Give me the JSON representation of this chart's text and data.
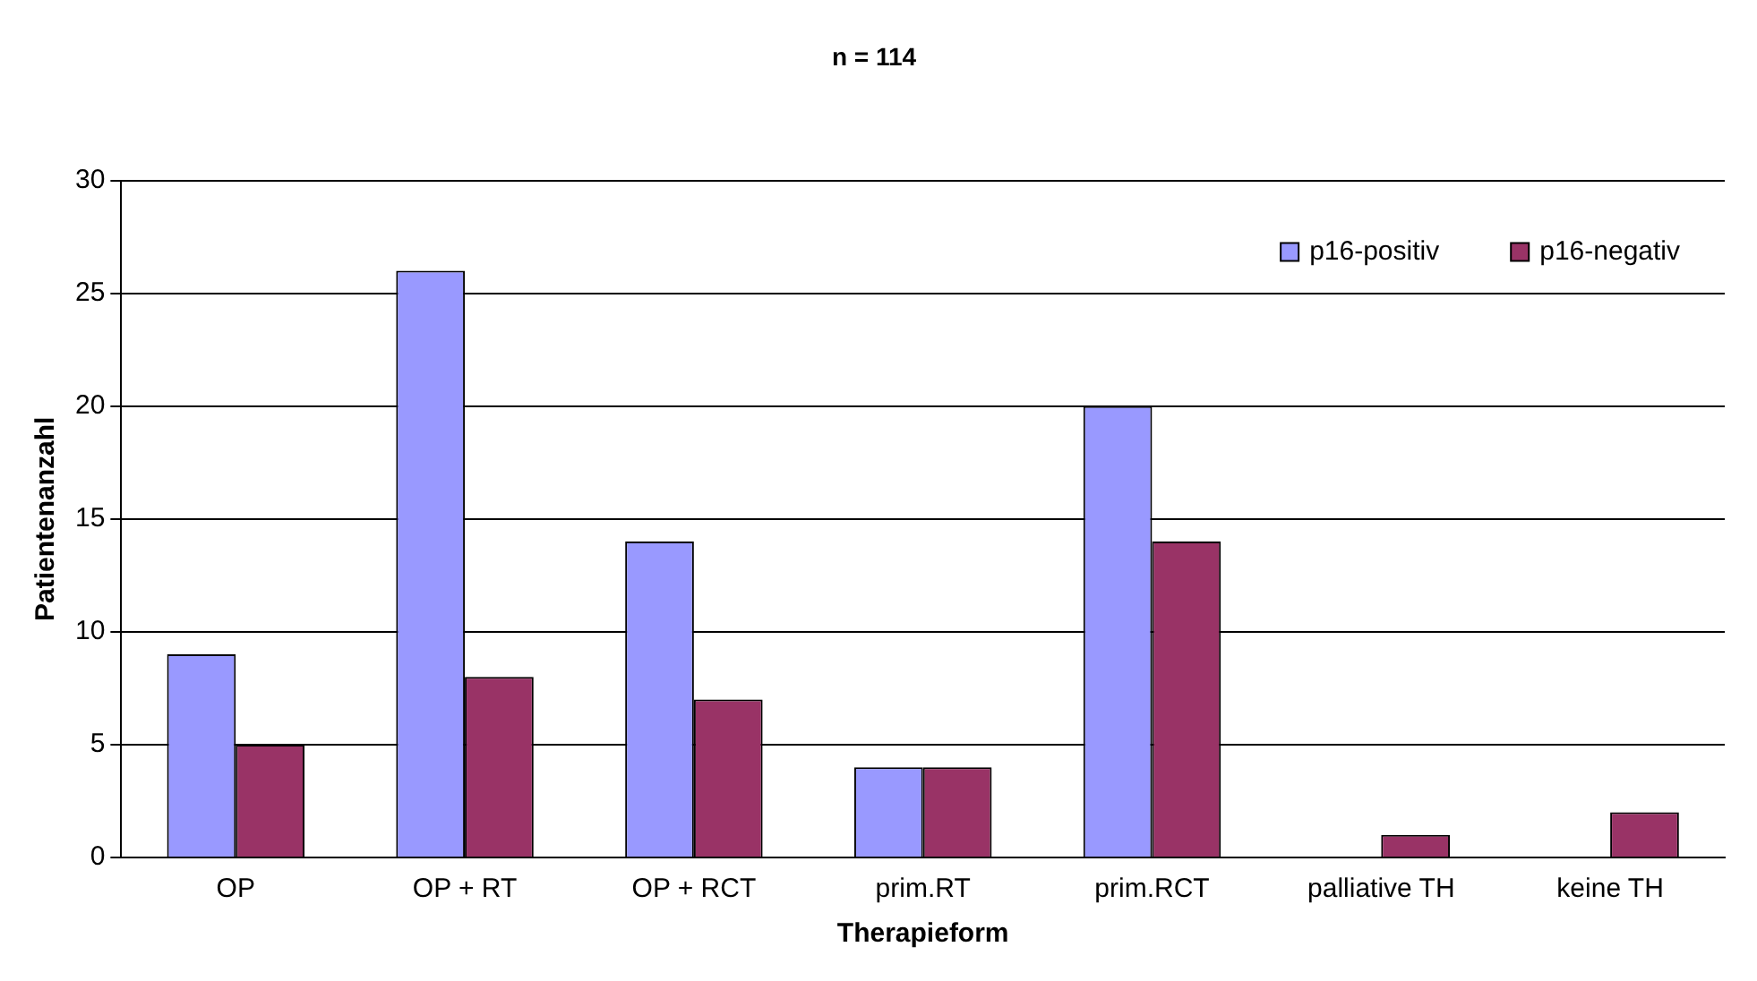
{
  "chart_data": {
    "type": "bar",
    "title": "n = 114",
    "xlabel": "Therapieform",
    "ylabel": "Patientenanzahl",
    "categories": [
      "OP",
      "OP + RT",
      "OP + RCT",
      "prim.RT",
      "prim.RCT",
      "palliative TH",
      "keine TH"
    ],
    "series": [
      {
        "name": "p16-positiv",
        "color": "#9999ff",
        "values": [
          9,
          26,
          14,
          4,
          20,
          0,
          0
        ]
      },
      {
        "name": "p16-negativ",
        "color": "#993366",
        "values": [
          5,
          8,
          7,
          4,
          14,
          1,
          2
        ]
      }
    ],
    "ylim": [
      0,
      30
    ],
    "yticks": [
      0,
      5,
      10,
      15,
      20,
      25,
      30
    ],
    "grid": "y",
    "legend": "top right"
  }
}
